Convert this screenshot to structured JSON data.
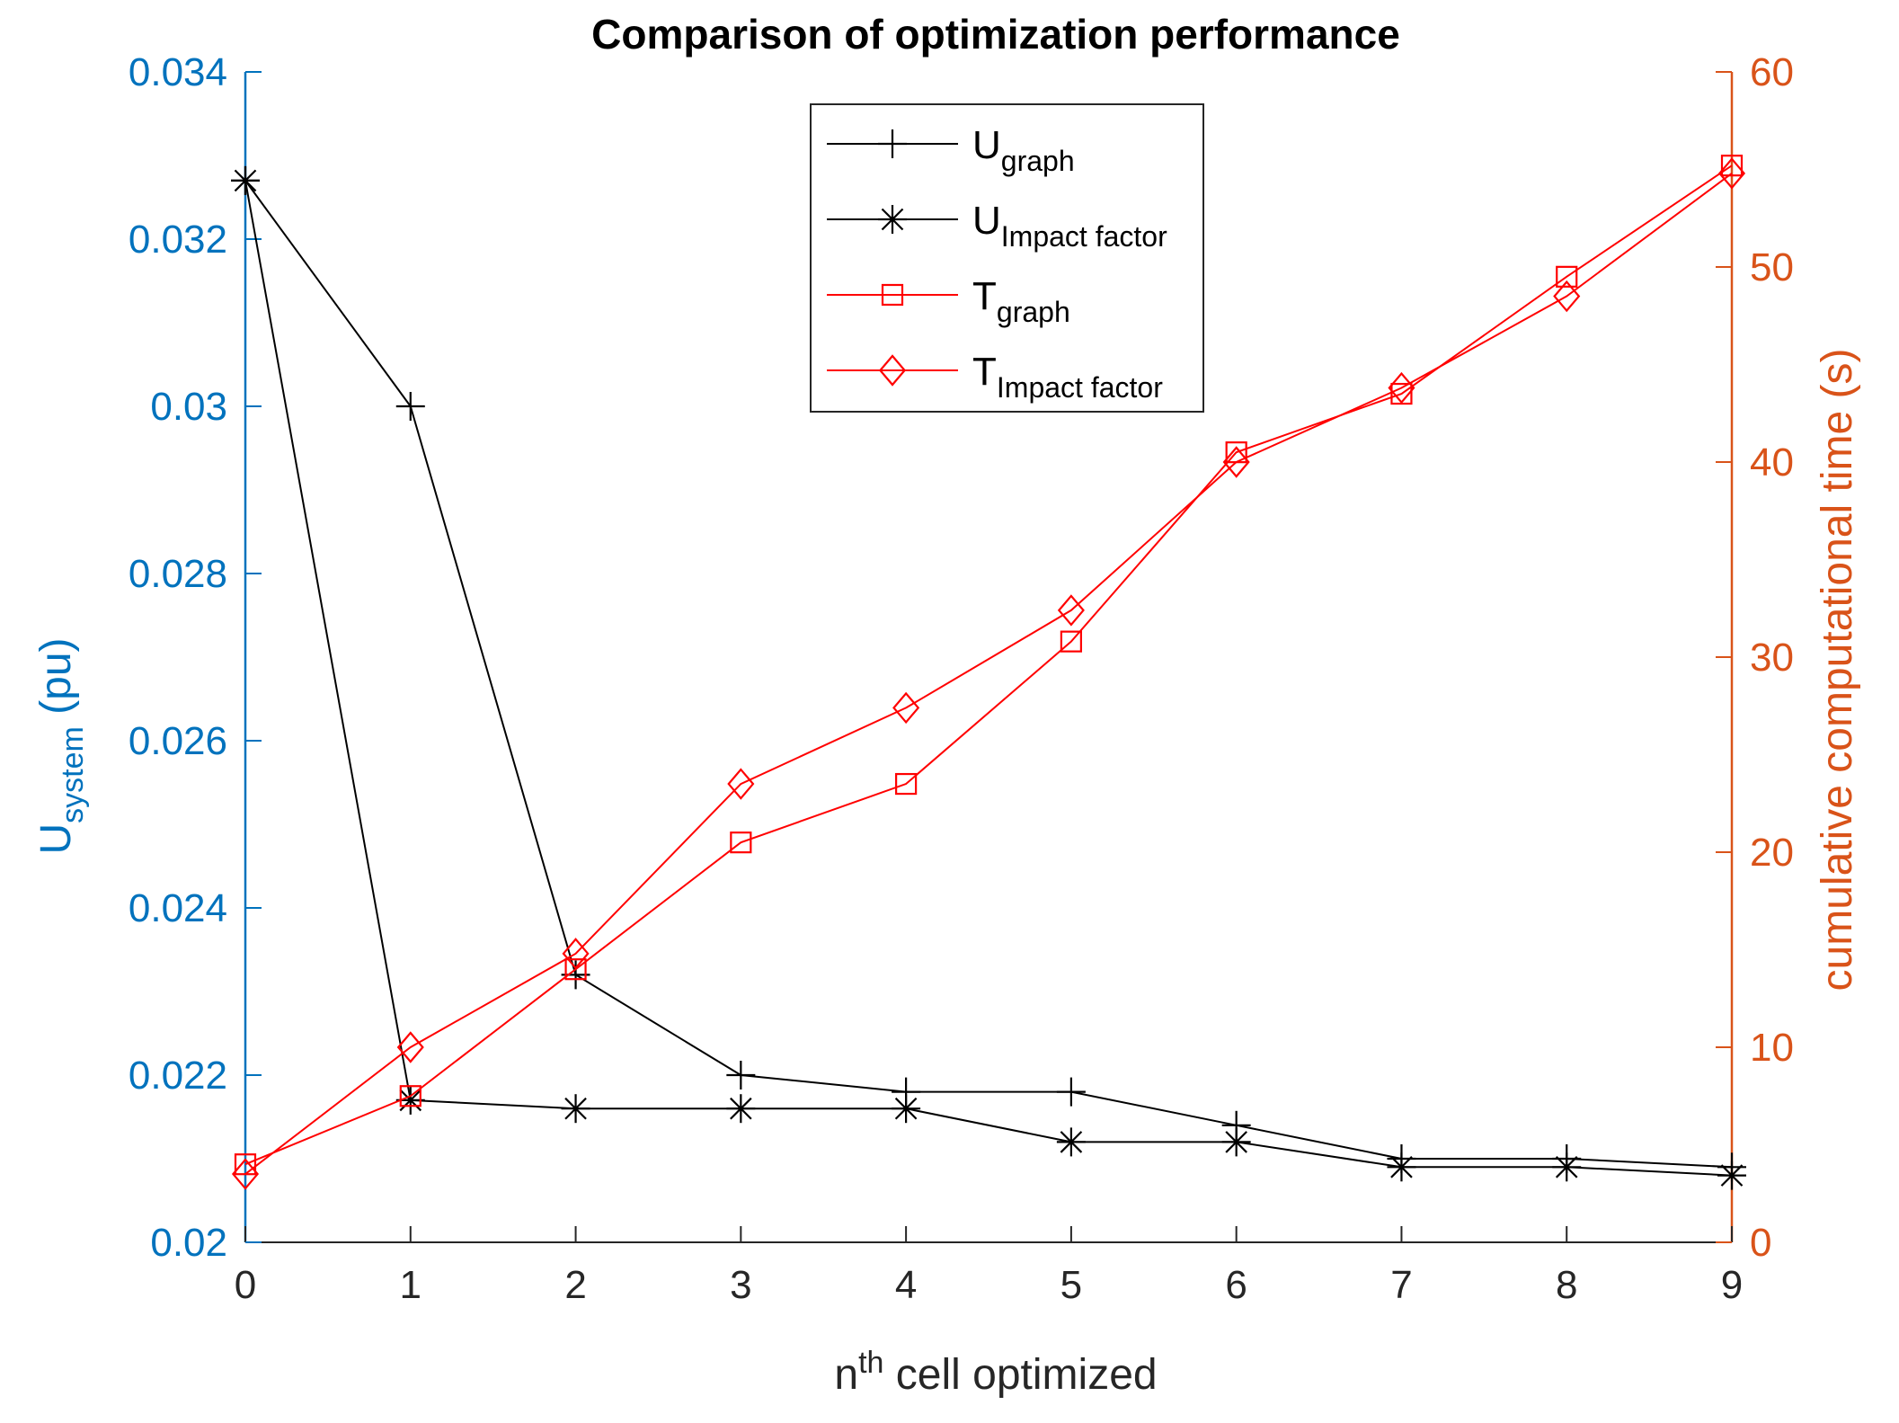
{
  "chart_data": {
    "type": "line",
    "title": "Comparison of optimization performance",
    "x": [
      0,
      1,
      2,
      3,
      4,
      5,
      6,
      7,
      8,
      9
    ],
    "xlim": [
      0,
      9
    ],
    "xticks": [
      "0",
      "1",
      "2",
      "3",
      "4",
      "5",
      "6",
      "7",
      "8",
      "9"
    ],
    "xlabel": {
      "base": "n",
      "superscript": "th",
      "rest": " cell optimized"
    },
    "ylabel_left": {
      "base": "U",
      "subscript": "system",
      "rest": " (pu)"
    },
    "ylabel_right": "cumulative computational time (s)",
    "ylim_left": [
      0.02,
      0.034
    ],
    "yticks_left": [
      "0.02",
      "0.022",
      "0.024",
      "0.026",
      "0.028",
      "0.03",
      "0.032",
      "0.034"
    ],
    "ylim_right": [
      0,
      60
    ],
    "yticks_right": [
      "0",
      "10",
      "20",
      "30",
      "40",
      "50",
      "60"
    ],
    "left_color": "#0072BD",
    "right_color": "#D95319",
    "legend_position": "top-center",
    "series": [
      {
        "name": "U",
        "sub": "graph",
        "axis": "left",
        "color": "#000000",
        "marker": "plus",
        "values": [
          0.0327,
          0.03,
          0.0232,
          0.022,
          0.0218,
          0.0218,
          0.0214,
          0.021,
          0.021,
          0.0209
        ]
      },
      {
        "name": "U",
        "sub": "Impact factor",
        "axis": "left",
        "color": "#000000",
        "marker": "star",
        "values": [
          0.0327,
          0.0217,
          0.0216,
          0.0216,
          0.0216,
          0.0212,
          0.0212,
          0.0209,
          0.0209,
          0.0208
        ]
      },
      {
        "name": "T",
        "sub": "graph",
        "axis": "right",
        "color": "#FF0000",
        "marker": "square",
        "values": [
          4.0,
          7.5,
          14.0,
          20.5,
          23.5,
          30.8,
          40.5,
          43.5,
          49.5,
          55.2
        ]
      },
      {
        "name": "T",
        "sub": "Impact factor",
        "axis": "right",
        "color": "#FF0000",
        "marker": "diamond",
        "values": [
          3.5,
          10.0,
          14.8,
          23.5,
          27.4,
          32.4,
          40.0,
          43.8,
          48.5,
          54.8
        ]
      }
    ]
  }
}
